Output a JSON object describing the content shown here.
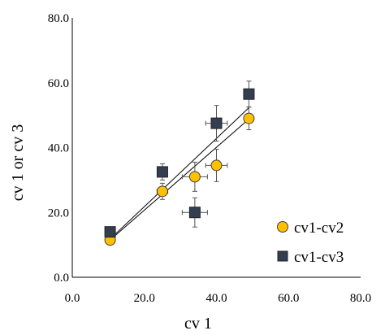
{
  "chart_data": {
    "type": "scatter",
    "xlabel": "cv 1",
    "ylabel": "cv 1 or cv 3",
    "xlim": [
      0,
      80
    ],
    "ylim": [
      0,
      80
    ],
    "xticks": [
      "0.0",
      "20.0",
      "40.0",
      "60.0",
      "80.0"
    ],
    "yticks": [
      "0.0",
      "20.0",
      "40.0",
      "60.0",
      "80.0"
    ],
    "tick_values": [
      0,
      20,
      40,
      60,
      80
    ],
    "grid": false,
    "legend_position": "bottom-right",
    "trendlines": true,
    "series": [
      {
        "name": "cv1-cv2",
        "marker": "circle",
        "color": "#FFC000",
        "edge_color": "#404040",
        "points": [
          {
            "x": 10.5,
            "y": 11.5,
            "xerr": 0.5,
            "yerr": 1.0
          },
          {
            "x": 25.0,
            "y": 26.5,
            "xerr": 1.5,
            "yerr": 2.5
          },
          {
            "x": 34.0,
            "y": 31.0,
            "xerr": 3.5,
            "yerr": 4.5
          },
          {
            "x": 40.0,
            "y": 34.5,
            "xerr": 3.0,
            "yerr": 5.0
          },
          {
            "x": 49.0,
            "y": 49.0,
            "xerr": 1.0,
            "yerr": 3.5
          }
        ],
        "trend": {
          "x0": 10.5,
          "y0": 11.5,
          "x1": 49.0,
          "y1": 48.8
        }
      },
      {
        "name": "cv1-cv3",
        "marker": "square",
        "color": "#333F50",
        "edge_color": "#222222",
        "points": [
          {
            "x": 10.5,
            "y": 14.0,
            "xerr": 0.5,
            "yerr": 1.0
          },
          {
            "x": 25.0,
            "y": 32.5,
            "xerr": 1.0,
            "yerr": 2.5
          },
          {
            "x": 34.0,
            "y": 20.0,
            "xerr": 3.5,
            "yerr": 4.5
          },
          {
            "x": 40.0,
            "y": 47.5,
            "xerr": 3.0,
            "yerr": 5.5
          },
          {
            "x": 49.0,
            "y": 56.5,
            "xerr": 1.0,
            "yerr": 4.0
          }
        ],
        "trend": {
          "x0": 10.5,
          "y0": 11.8,
          "x1": 49.0,
          "y1": 52.3
        }
      }
    ]
  }
}
